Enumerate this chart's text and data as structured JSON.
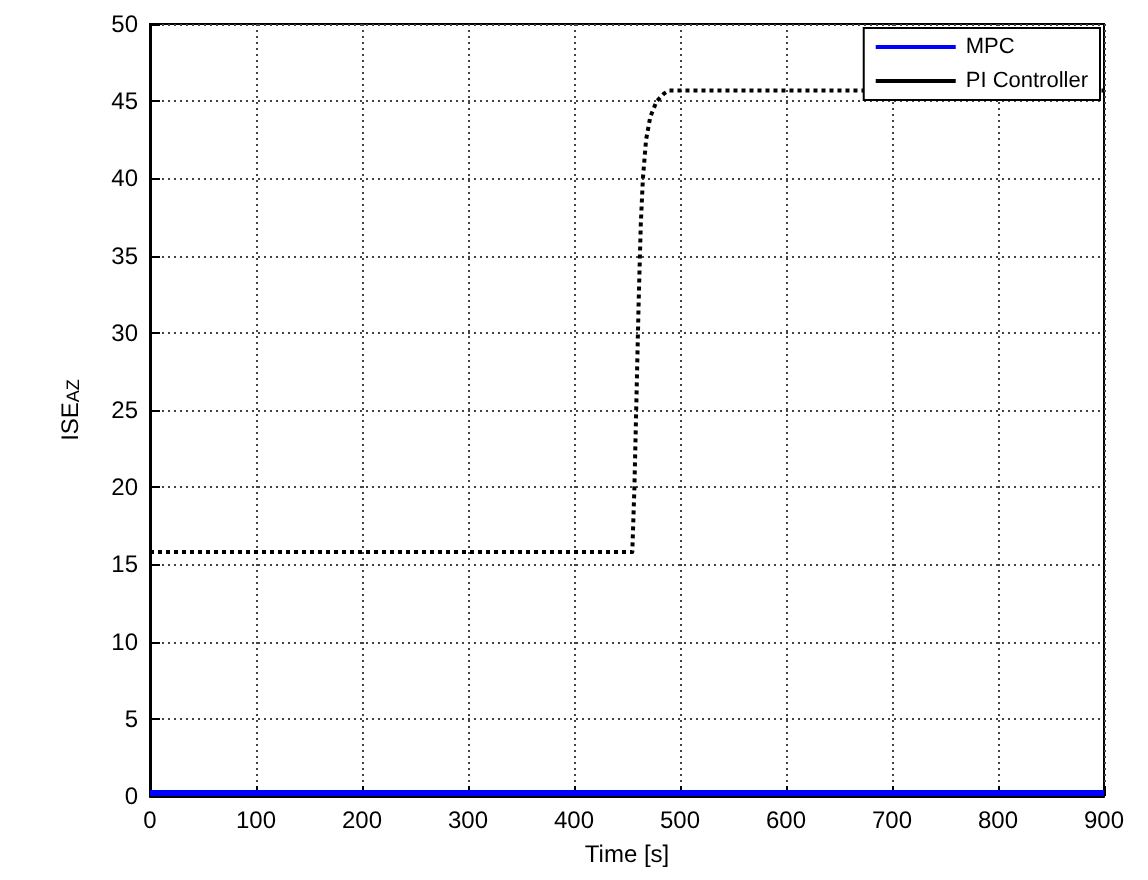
{
  "chart_data": {
    "type": "line",
    "xlabel": "Time [s]",
    "ylabel": "ISE$_{AZ}$",
    "xlim": [
      0,
      900
    ],
    "xticks": [
      0,
      100,
      200,
      300,
      400,
      500,
      600,
      700,
      800,
      900
    ],
    "ylim": [
      0,
      50
    ],
    "yticks": [
      0,
      5,
      10,
      15,
      20,
      25,
      30,
      35,
      40,
      45,
      50
    ],
    "grid": true,
    "legend": "top right",
    "series": [
      {
        "name": "MPC",
        "color": "#0000ff",
        "line_style": "solid",
        "x": [
          0,
          900
        ],
        "values": [
          0.2,
          0.2
        ]
      },
      {
        "name": "PI Controller",
        "color": "#000000",
        "line_style": "dotted",
        "x": [
          0,
          455,
          457,
          459,
          461,
          463,
          465,
          468,
          472,
          478,
          485,
          490,
          900
        ],
        "values": [
          15.8,
          15.8,
          20,
          26,
          32,
          37,
          40,
          42.5,
          44,
          45,
          45.5,
          45.7,
          45.7
        ]
      }
    ]
  }
}
